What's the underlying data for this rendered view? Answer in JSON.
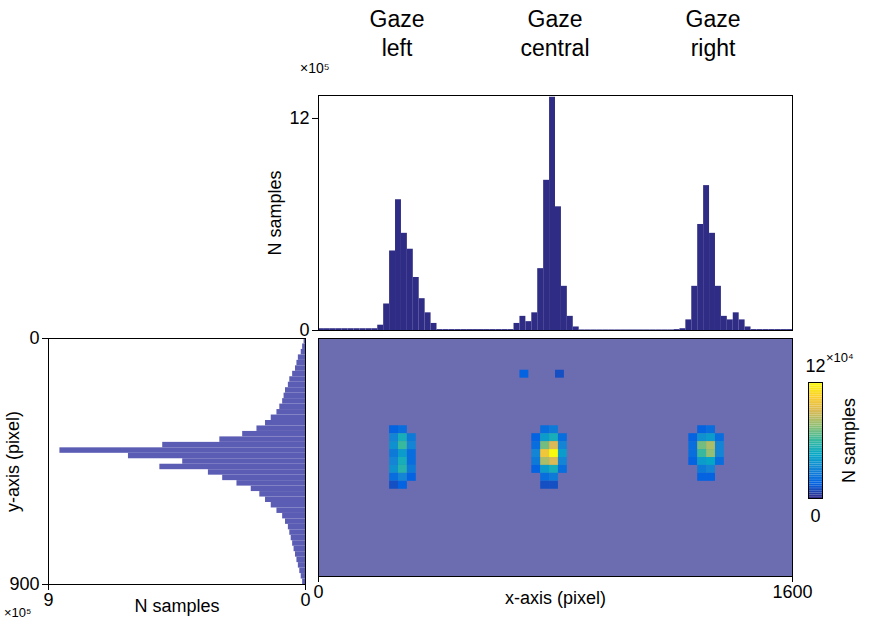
{
  "chart_data": [
    {
      "type": "histogram",
      "annotations": [
        "Gaze left",
        "Gaze central",
        "Gaze right"
      ],
      "y_label": "N samples",
      "y_multiplier": "×10⁵",
      "bins": [
        0,
        20,
        40,
        60,
        80,
        100,
        120,
        140,
        160,
        180,
        200,
        220,
        240,
        260,
        280,
        300,
        320,
        340,
        360,
        380,
        400,
        420,
        440,
        460,
        480,
        500,
        520,
        540,
        560,
        580,
        600,
        620,
        640,
        660,
        680,
        700,
        720,
        740,
        760,
        780,
        800,
        820,
        840,
        860,
        880,
        900,
        920,
        940,
        960,
        980,
        1000,
        1020,
        1040,
        1060,
        1080,
        1100,
        1120,
        1140,
        1160,
        1180,
        1200,
        1220,
        1240,
        1260,
        1280,
        1300,
        1320,
        1340,
        1360,
        1380,
        1400,
        1420,
        1440,
        1460,
        1480,
        1500,
        1520,
        1540,
        1560,
        1580,
        1600
      ],
      "values": [
        0.1,
        0.1,
        0.1,
        0.1,
        0.1,
        0.1,
        0.1,
        0.1,
        0.1,
        0.1,
        0.3,
        1.5,
        4.5,
        7.4,
        5.5,
        4.6,
        3.0,
        1.8,
        1.0,
        0.4,
        0.05,
        0.05,
        0.05,
        0.05,
        0.05,
        0.05,
        0.05,
        0.05,
        0.05,
        0.05,
        0.05,
        0.05,
        0.05,
        0.4,
        0.8,
        0.5,
        1.0,
        3.5,
        8.5,
        13.2,
        7.0,
        2.5,
        0.8,
        0.2,
        0.03,
        0.03,
        0.03,
        0.03,
        0.03,
        0.03,
        0.03,
        0.03,
        0.03,
        0.03,
        0.03,
        0.03,
        0.03,
        0.03,
        0.03,
        0.03,
        0.05,
        0.1,
        0.6,
        2.5,
        6.0,
        8.2,
        5.5,
        2.5,
        0.8,
        0.6,
        1.0,
        0.6,
        0.2,
        0.05,
        0.05,
        0.05,
        0.05,
        0.05,
        0.05,
        0.05
      ],
      "color": "#2f2c85",
      "xlim": [
        0,
        1600
      ],
      "ylim": [
        0,
        13.3
      ],
      "yticks": [
        0,
        12
      ],
      "tick_labels": "y"
    },
    {
      "type": "histogram",
      "orientation": "horizontal",
      "x_label": "N samples",
      "x_multiplier": "×10⁵",
      "y_label": "y-axis (pixel)",
      "bins": [
        0,
        20,
        40,
        60,
        80,
        100,
        120,
        140,
        160,
        180,
        200,
        220,
        240,
        260,
        280,
        300,
        320,
        340,
        360,
        380,
        400,
        420,
        440,
        460,
        480,
        500,
        520,
        540,
        560,
        580,
        600,
        620,
        640,
        660,
        680,
        700,
        720,
        740,
        760,
        780,
        800,
        820,
        840,
        860,
        880,
        900
      ],
      "values": [
        0.05,
        0.1,
        0.15,
        0.25,
        0.3,
        0.35,
        0.45,
        0.55,
        0.6,
        0.7,
        0.75,
        0.8,
        0.9,
        1.0,
        1.2,
        1.4,
        1.7,
        2.2,
        3.0,
        5.0,
        8.6,
        6.2,
        4.3,
        5.1,
        3.4,
        2.9,
        2.4,
        1.9,
        1.6,
        1.4,
        1.2,
        1.0,
        0.8,
        0.7,
        0.6,
        0.55,
        0.5,
        0.45,
        0.4,
        0.35,
        0.3,
        0.25,
        0.2,
        0.15,
        0.1
      ],
      "color": "#5b5cb3",
      "xlim": [
        9,
        0
      ],
      "xticks": [
        9,
        0
      ],
      "ylim": [
        900,
        0
      ],
      "yticks": [
        0,
        900
      ]
    },
    {
      "type": "heatmap",
      "x_label": "x-axis (pixel)",
      "xlim": [
        0,
        1600
      ],
      "xticks": [
        0,
        1600
      ],
      "ylim": [
        900,
        0
      ],
      "tick_labels": "x",
      "cell_width": 30,
      "cell_height": 30,
      "cells": [
        [
          750,
          330,
          2
        ],
        [
          780,
          330,
          2.5
        ],
        [
          720,
          360,
          1.5
        ],
        [
          750,
          360,
          4
        ],
        [
          780,
          360,
          5
        ],
        [
          810,
          360,
          2
        ],
        [
          720,
          390,
          2
        ],
        [
          750,
          390,
          7
        ],
        [
          780,
          390,
          9
        ],
        [
          810,
          390,
          3
        ],
        [
          720,
          420,
          3
        ],
        [
          750,
          420,
          10
        ],
        [
          780,
          420,
          12
        ],
        [
          810,
          420,
          4
        ],
        [
          720,
          450,
          2.5
        ],
        [
          750,
          450,
          8
        ],
        [
          780,
          450,
          9
        ],
        [
          810,
          450,
          3
        ],
        [
          720,
          480,
          1.5
        ],
        [
          750,
          480,
          4
        ],
        [
          780,
          480,
          5
        ],
        [
          810,
          480,
          2
        ],
        [
          750,
          510,
          2
        ],
        [
          780,
          510,
          2.5
        ],
        [
          750,
          540,
          1
        ],
        [
          780,
          540,
          1
        ],
        [
          240,
          330,
          1.5
        ],
        [
          270,
          330,
          2
        ],
        [
          240,
          360,
          3
        ],
        [
          270,
          360,
          5
        ],
        [
          300,
          360,
          2.5
        ],
        [
          240,
          390,
          3.5
        ],
        [
          270,
          390,
          6
        ],
        [
          300,
          390,
          3
        ],
        [
          240,
          420,
          2.5
        ],
        [
          270,
          420,
          4
        ],
        [
          300,
          420,
          2
        ],
        [
          240,
          450,
          3
        ],
        [
          270,
          450,
          5
        ],
        [
          300,
          450,
          2
        ],
        [
          240,
          480,
          3.5
        ],
        [
          270,
          480,
          5.5
        ],
        [
          300,
          480,
          2.5
        ],
        [
          240,
          510,
          2
        ],
        [
          270,
          510,
          3
        ],
        [
          300,
          510,
          1.5
        ],
        [
          240,
          540,
          1
        ],
        [
          270,
          540,
          1.5
        ],
        [
          1280,
          330,
          1.5
        ],
        [
          1310,
          330,
          2
        ],
        [
          1250,
          360,
          1.5
        ],
        [
          1280,
          360,
          3.5
        ],
        [
          1310,
          360,
          4
        ],
        [
          1340,
          360,
          2
        ],
        [
          1250,
          390,
          2
        ],
        [
          1280,
          390,
          7
        ],
        [
          1310,
          390,
          8
        ],
        [
          1340,
          390,
          3
        ],
        [
          1250,
          420,
          2
        ],
        [
          1280,
          420,
          6
        ],
        [
          1310,
          420,
          7.5
        ],
        [
          1340,
          420,
          3
        ],
        [
          1250,
          450,
          1.5
        ],
        [
          1280,
          450,
          4
        ],
        [
          1310,
          450,
          4.5
        ],
        [
          1340,
          450,
          2
        ],
        [
          1280,
          480,
          2.5
        ],
        [
          1310,
          480,
          3
        ],
        [
          1280,
          510,
          1.5
        ],
        [
          1310,
          510,
          1.5
        ],
        [
          680,
          120,
          1.5
        ],
        [
          800,
          120,
          1
        ]
      ],
      "colorbar": {
        "label": "N samples",
        "multiplier": "×10⁴",
        "range": [
          0,
          12
        ],
        "ticks": [
          0,
          12
        ]
      }
    }
  ]
}
